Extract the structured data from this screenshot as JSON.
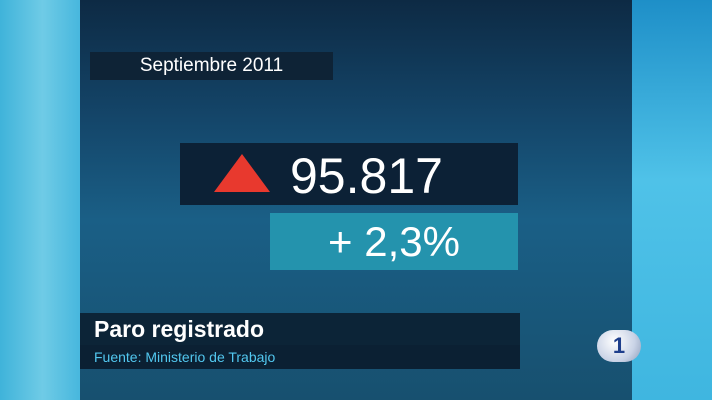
{
  "header": {
    "date": "Septiembre 2011"
  },
  "figure": {
    "value": "95.817",
    "change": "+ 2,3%"
  },
  "caption": {
    "title": "Paro registrado",
    "source": "Fuente: Ministerio de Trabajo"
  },
  "logo": {
    "label": "1"
  }
}
